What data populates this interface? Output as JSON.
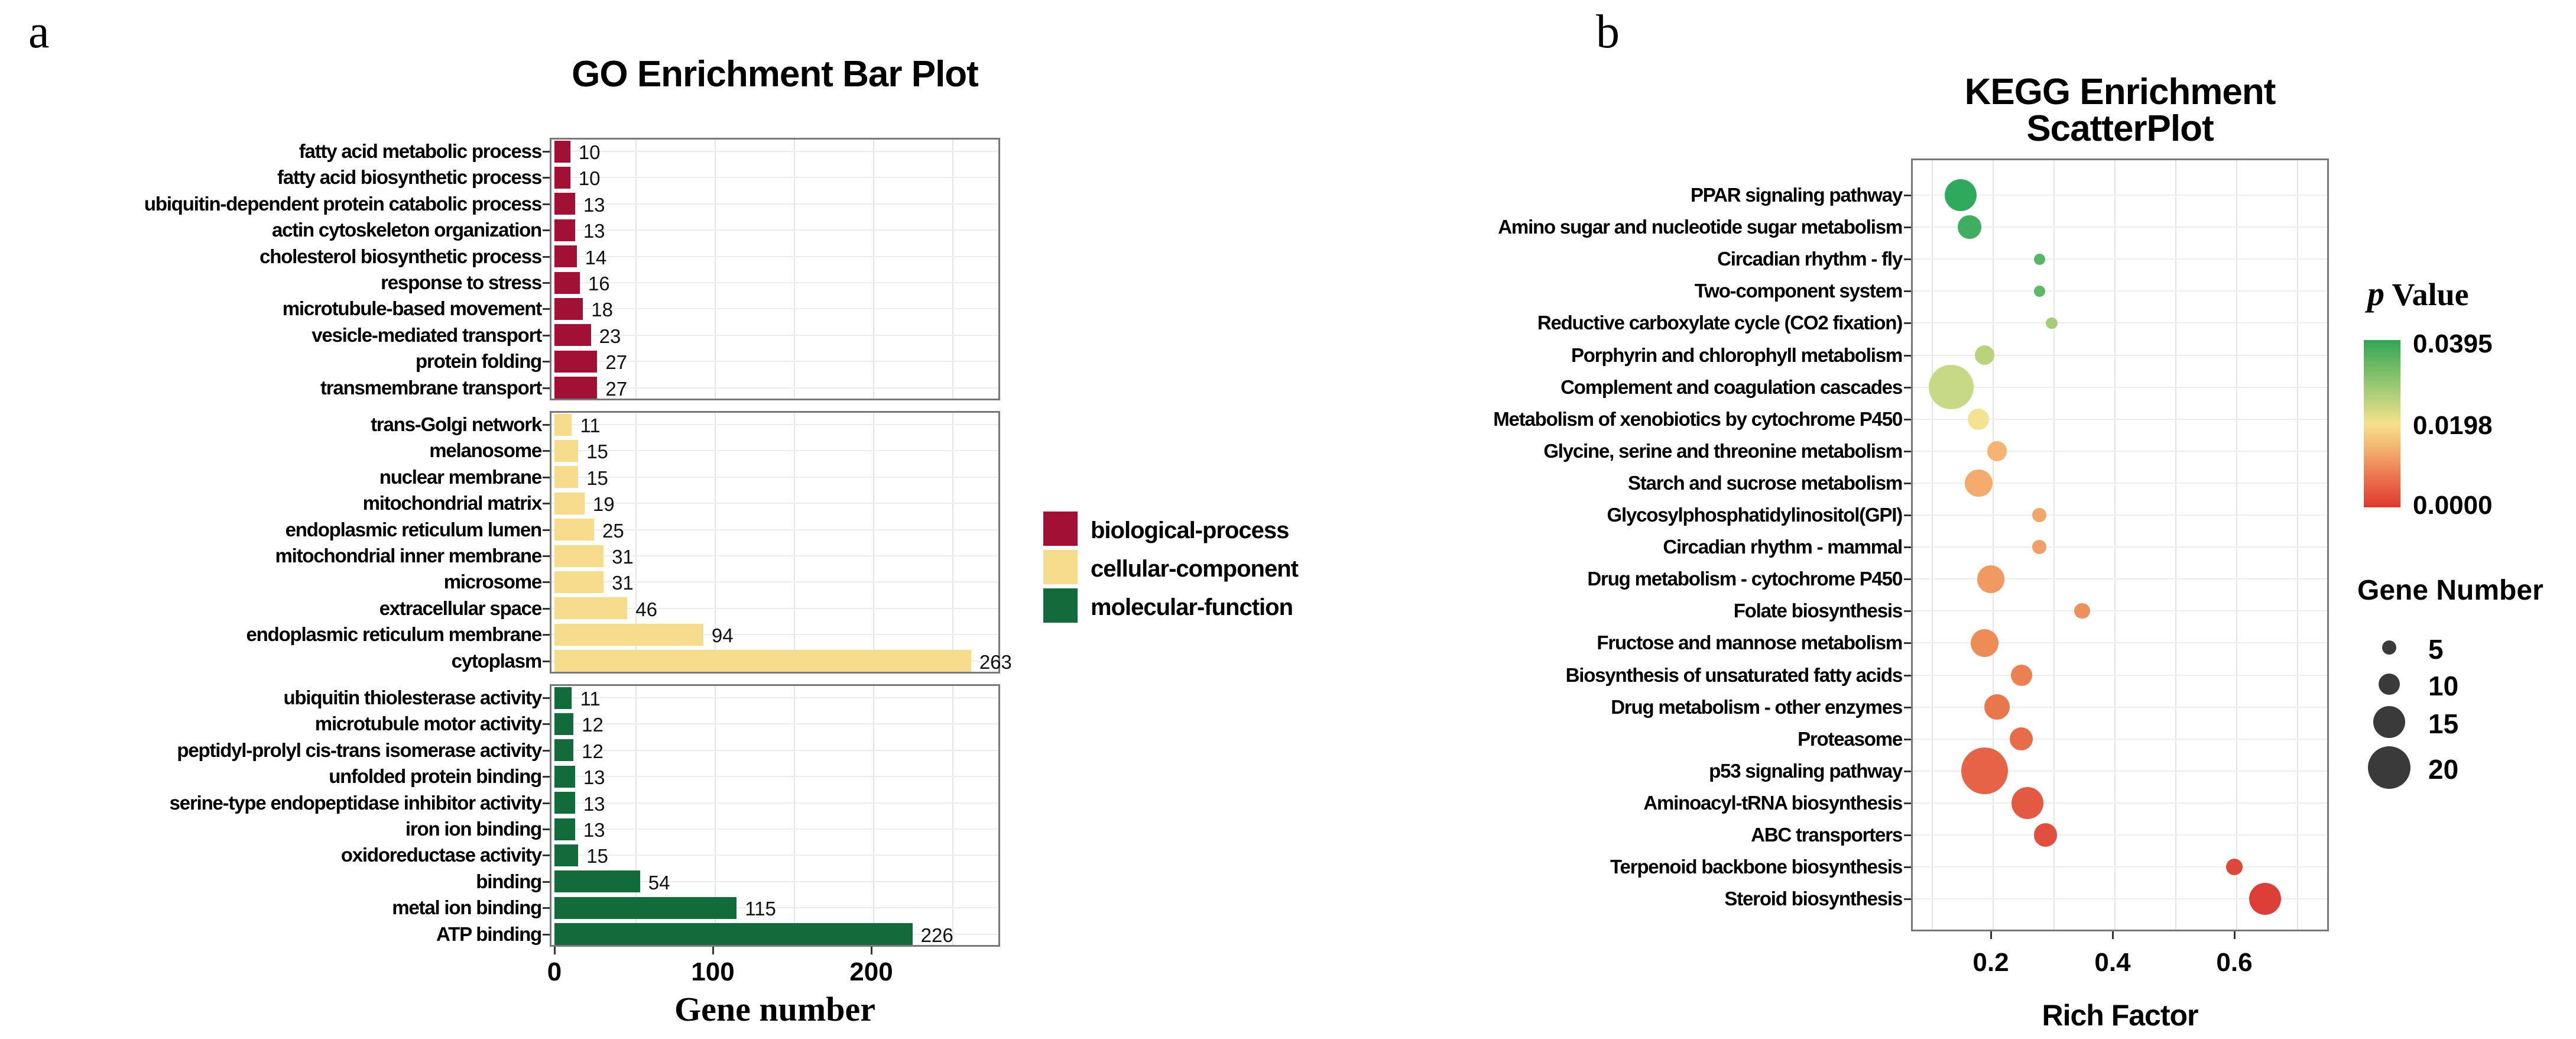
{
  "panels": {
    "a_label": "a",
    "b_label": "b"
  },
  "chart_data": [
    {
      "id": "go",
      "type": "bar",
      "title": "GO Enrichment Bar Plot",
      "xlabel": "Gene number",
      "xlim": [
        0,
        280
      ],
      "x_ticks": [
        0,
        100,
        200
      ],
      "x_tick_labels": [
        "0",
        "100",
        "200"
      ],
      "grid": "on",
      "legend_position": "right",
      "groups": [
        {
          "name": "biological-process",
          "color": "#A21035",
          "categories": [
            "fatty acid metabolic process",
            "fatty acid biosynthetic process",
            "ubiquitin-dependent protein catabolic process",
            "actin cytoskeleton organization",
            "cholesterol biosynthetic process",
            "response to stress",
            "microtubule-based movement",
            "vesicle-mediated transport",
            "protein folding",
            "transmembrane transport"
          ],
          "values": [
            10,
            10,
            13,
            13,
            14,
            16,
            18,
            23,
            27,
            27
          ]
        },
        {
          "name": "cellular-component",
          "color": "#F8DC8D",
          "categories": [
            "trans-Golgi network",
            "melanosome",
            "nuclear membrane",
            "mitochondrial matrix",
            "endoplasmic reticulum lumen",
            "mitochondrial inner membrane",
            "microsome",
            "extracellular space",
            "endoplasmic reticulum membrane",
            "cytoplasm"
          ],
          "values": [
            11,
            15,
            15,
            19,
            25,
            31,
            31,
            46,
            94,
            263
          ]
        },
        {
          "name": "molecular-function",
          "color": "#116B3B",
          "categories": [
            "ubiquitin thiolesterase activity",
            "microtubule motor activity",
            "peptidyl-prolyl cis-trans isomerase activity",
            "unfolded protein binding",
            "serine-type endopeptidase inhibitor activity",
            "iron ion binding",
            "oxidoreductase activity",
            "binding",
            "metal ion binding",
            "ATP binding"
          ],
          "values": [
            11,
            12,
            12,
            13,
            13,
            13,
            15,
            54,
            115,
            226
          ]
        }
      ]
    },
    {
      "id": "kegg",
      "type": "scatter",
      "title": "KEGG Enrichment ScatterPlot",
      "xlabel": "Rich Factor",
      "xlim": [
        0.07,
        0.755
      ],
      "x_ticks": [
        0.2,
        0.4,
        0.6
      ],
      "x_tick_labels": [
        "0.2",
        "0.4",
        "0.6"
      ],
      "grid": "on",
      "color_legend": {
        "title_italic": "p",
        "title_rest": " Value",
        "tick_labels": [
          "0.0395",
          "0.0198",
          "0.0000"
        ],
        "top_color": "#2FA656",
        "mid_color": "#F6E18B",
        "bottom_color": "#E03A2E"
      },
      "size_legend": {
        "title": "Gene Number",
        "entries": [
          {
            "label": "5",
            "value": 5,
            "radius": 12
          },
          {
            "label": "10",
            "value": 10,
            "radius": 18
          },
          {
            "label": "15",
            "value": 15,
            "radius": 27
          },
          {
            "label": "20",
            "value": 20,
            "radius": 36
          }
        ]
      },
      "points": [
        {
          "pathway": "PPAR signaling pathway",
          "rich_factor": 0.15,
          "gene_number": 15,
          "p_value": 0.038,
          "color": "#2FA95B"
        },
        {
          "pathway": "Amino sugar and nucleotide sugar metabolism",
          "rich_factor": 0.165,
          "gene_number": 11,
          "p_value": 0.0365,
          "color": "#3FAE60"
        },
        {
          "pathway": "Circadian rhythm - fly",
          "rich_factor": 0.28,
          "gene_number": 4,
          "p_value": 0.034,
          "color": "#57B566"
        },
        {
          "pathway": "Two-component system",
          "rich_factor": 0.28,
          "gene_number": 4,
          "p_value": 0.033,
          "color": "#5FB868"
        },
        {
          "pathway": "Reductive carboxylate cycle (CO2 fixation)",
          "rich_factor": 0.3,
          "gene_number": 4,
          "p_value": 0.03,
          "color": "#A5CC76"
        },
        {
          "pathway": "Porphyrin and chlorophyll metabolism",
          "rich_factor": 0.19,
          "gene_number": 9,
          "p_value": 0.027,
          "color": "#B9D37D"
        },
        {
          "pathway": "Complement and coagulation cascades",
          "rich_factor": 0.135,
          "gene_number": 21,
          "p_value": 0.025,
          "color": "#C8D986"
        },
        {
          "pathway": "Metabolism of xenobiotics by cytochrome P450",
          "rich_factor": 0.18,
          "gene_number": 10,
          "p_value": 0.02,
          "color": "#F2E292"
        },
        {
          "pathway": "Glycine, serine and threonine metabolism",
          "rich_factor": 0.21,
          "gene_number": 9,
          "p_value": 0.016,
          "color": "#F5B471"
        },
        {
          "pathway": "Starch and sucrose metabolism",
          "rich_factor": 0.18,
          "gene_number": 13,
          "p_value": 0.015,
          "color": "#F3AC6D"
        },
        {
          "pathway": "Glycosylphosphatidylinositol(GPI)",
          "rich_factor": 0.28,
          "gene_number": 5,
          "p_value": 0.014,
          "color": "#F2A669"
        },
        {
          "pathway": "Circadian rhythm - mammal",
          "rich_factor": 0.28,
          "gene_number": 5,
          "p_value": 0.013,
          "color": "#F1A065"
        },
        {
          "pathway": "Drug metabolism - cytochrome P450",
          "rich_factor": 0.2,
          "gene_number": 13,
          "p_value": 0.012,
          "color": "#F09A61"
        },
        {
          "pathway": "Folate biosynthesis",
          "rich_factor": 0.35,
          "gene_number": 6,
          "p_value": 0.011,
          "color": "#EE905B"
        },
        {
          "pathway": "Fructose and mannose metabolism",
          "rich_factor": 0.19,
          "gene_number": 13,
          "p_value": 0.01,
          "color": "#EE8C58"
        },
        {
          "pathway": "Biosynthesis of unsaturated fatty acids",
          "rich_factor": 0.25,
          "gene_number": 10,
          "p_value": 0.0085,
          "color": "#EB8052"
        },
        {
          "pathway": "Drug metabolism - other enzymes",
          "rich_factor": 0.21,
          "gene_number": 12,
          "p_value": 0.007,
          "color": "#E9774E"
        },
        {
          "pathway": "Proteasome",
          "rich_factor": 0.25,
          "gene_number": 11,
          "p_value": 0.006,
          "color": "#E76D4A"
        },
        {
          "pathway": "p53 signaling pathway",
          "rich_factor": 0.19,
          "gene_number": 22,
          "p_value": 0.005,
          "color": "#E56346"
        },
        {
          "pathway": "Aminoacyl-tRNA biosynthesis",
          "rich_factor": 0.26,
          "gene_number": 15,
          "p_value": 0.004,
          "color": "#E35942"
        },
        {
          "pathway": "ABC transporters",
          "rich_factor": 0.29,
          "gene_number": 11,
          "p_value": 0.003,
          "color": "#E1503E"
        },
        {
          "pathway": "Terpenoid backbone biosynthesis",
          "rich_factor": 0.6,
          "gene_number": 7,
          "p_value": 0.0015,
          "color": "#DF473B"
        },
        {
          "pathway": "Steroid biosynthesis",
          "rich_factor": 0.65,
          "gene_number": 15,
          "p_value": 0.0005,
          "color": "#DD3E37"
        }
      ]
    }
  ]
}
